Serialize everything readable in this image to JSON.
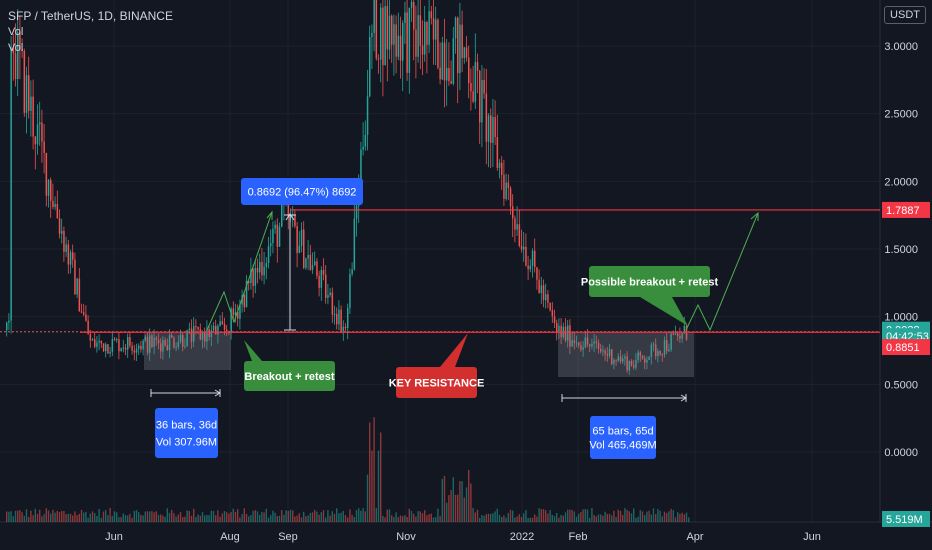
{
  "currency_unit": "USDT",
  "indicators": [
    "Vol",
    "Vol"
  ],
  "colors": {
    "background": "#131722",
    "up": "#26a69a",
    "down": "#ef5350",
    "resistance": "#f23645",
    "blue_label": "#2962ff",
    "green_label": "#388e3c",
    "red_label": "#d32f2f",
    "arrow": "#4caf50",
    "axis_text": "#d1d4dc"
  },
  "chart_data": {
    "type": "candlestick",
    "title": "SFP / TetherUS, 1D, BINANCE",
    "y_ticks": [
      "3.0000",
      "2.5000",
      "2.0000",
      "1.5000",
      "1.0000",
      "0.5000",
      "0.0000"
    ],
    "x_ticks": [
      "Jun",
      "Aug",
      "Sep",
      "Nov",
      "2022",
      "Feb",
      "Apr",
      "Jun"
    ],
    "price_markers": [
      {
        "label": "1.7887",
        "value": 1.7887,
        "kind": "resistance"
      },
      {
        "label": "0.9038",
        "value": 0.9038,
        "kind": "last"
      },
      {
        "label": "04:42:53",
        "value": 0.8555,
        "kind": "countdown"
      },
      {
        "label": "0.8851",
        "value": 0.7755,
        "kind": "low"
      },
      {
        "label": "5.519M",
        "value": -0.495,
        "kind": "volume"
      }
    ],
    "support_level": 0.8851,
    "resistance_level": 1.7887,
    "key_points": [
      {
        "date": "Apr 2021",
        "price": 3.1
      },
      {
        "date": "Jun 2021",
        "price": 0.8
      },
      {
        "date": "Jul 2021",
        "price": 0.8
      },
      {
        "date": "Aug 2021",
        "price": 0.9
      },
      {
        "date": "Sep 2021",
        "price": 1.75
      },
      {
        "date": "Oct 2021",
        "price": 0.9
      },
      {
        "date": "Nov 2021",
        "price": 3.15
      },
      {
        "date": "Dec 2021",
        "price": 2.95
      },
      {
        "date": "2022",
        "price": 1.6
      },
      {
        "date": "Feb 2022",
        "price": 0.9
      },
      {
        "date": "Mar 2022",
        "price": 0.65
      },
      {
        "date": "Apr 2022",
        "price": 0.9
      }
    ],
    "annotations": [
      {
        "text": "0.8692 (96.47%) 8692",
        "kind": "measure"
      },
      {
        "text": "Breakout + retest",
        "kind": "callout-green"
      },
      {
        "text": "KEY RESISTANCE",
        "kind": "callout-red"
      },
      {
        "text": "Possible breakout + retest",
        "kind": "callout-green"
      },
      {
        "lines": [
          "36 bars, 36d",
          "Vol 307.96M"
        ],
        "kind": "range-box"
      },
      {
        "lines": [
          "65 bars, 65d",
          "Vol 465.469M"
        ],
        "kind": "range-box"
      }
    ]
  }
}
